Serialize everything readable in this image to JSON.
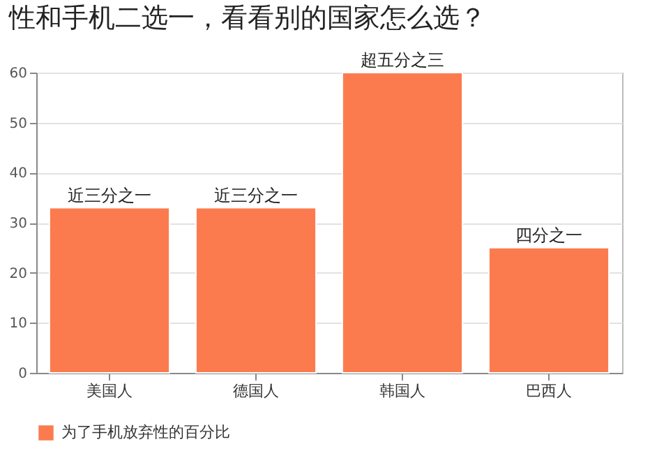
{
  "chart_data": {
    "type": "bar",
    "title": "性和手机二选一，看看别的国家怎么选？",
    "categories": [
      "美国人",
      "德国人",
      "韩国人",
      "巴西人"
    ],
    "series": [
      {
        "name": "为了手机放弃性的百分比",
        "color": "#fb7b4f",
        "values": [
          33,
          33,
          60,
          25
        ]
      }
    ],
    "ylim": [
      0,
      60
    ],
    "yticks": [
      0,
      10,
      20,
      30,
      40,
      50,
      60
    ],
    "grid": "y",
    "legend": "bottom",
    "annotations": [
      {
        "text": "近三分之一",
        "x": "美国人",
        "y": 33
      },
      {
        "text": "近三分之一",
        "x": "德国人",
        "y": 33
      },
      {
        "text": "超五分之三",
        "x": "韩国人",
        "y": 60
      },
      {
        "text": "四分之一",
        "x": "巴西人",
        "y": 25
      }
    ]
  }
}
